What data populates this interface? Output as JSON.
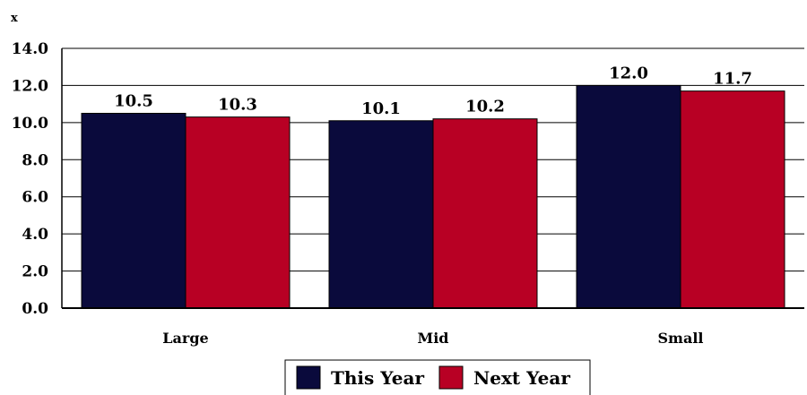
{
  "chart_data": {
    "type": "bar",
    "ylabel": "x",
    "categories": [
      "Large",
      "Mid",
      "Small"
    ],
    "series": [
      {
        "name": "This Year",
        "values": [
          10.5,
          10.1,
          12.0
        ],
        "color": "#0a0a3c"
      },
      {
        "name": "Next Year",
        "values": [
          10.3,
          10.2,
          11.7
        ],
        "color": "#b80024"
      }
    ],
    "ylim": [
      0,
      14
    ],
    "ytick_step": 2,
    "ytick_labels": [
      "0.0",
      "2.0",
      "4.0",
      "6.0",
      "8.0",
      "10.0",
      "12.0",
      "14.0"
    ],
    "grid": true,
    "legend": "bottom-center"
  }
}
